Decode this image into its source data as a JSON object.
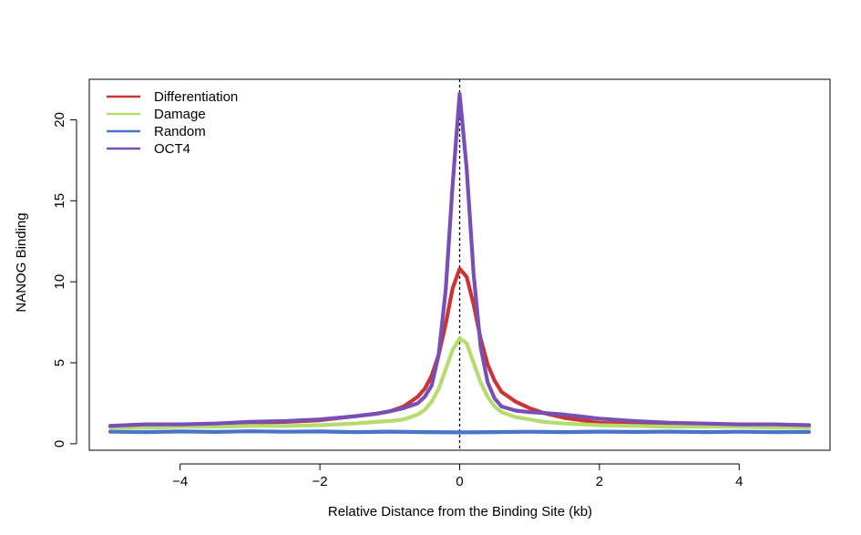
{
  "chart_data": {
    "type": "line",
    "title": "",
    "xlabel": "Relative Distance from the Binding Site (kb)",
    "ylabel": "NANOG Binding",
    "xlim": [
      -5.3,
      5.3
    ],
    "ylim": [
      -0.4,
      22.5
    ],
    "xticks": [
      -4,
      -2,
      0,
      2,
      4
    ],
    "xtick_labels": [
      "−4",
      "−2",
      "0",
      "2",
      "4"
    ],
    "yticks": [
      0,
      5,
      10,
      15,
      20
    ],
    "ytick_labels": [
      "0",
      "5",
      "10",
      "15",
      "20"
    ],
    "grid": false,
    "legend_position": "top-left",
    "reference_line": {
      "x": 0,
      "style": "dashed",
      "color": "#000000"
    },
    "series": [
      {
        "name": "Differentiation",
        "color": "#cc3333",
        "x": [
          -5,
          -4.5,
          -4,
          -3.5,
          -3,
          -2.5,
          -2,
          -1.5,
          -1.2,
          -1,
          -0.8,
          -0.6,
          -0.5,
          -0.4,
          -0.3,
          -0.2,
          -0.1,
          0,
          0.1,
          0.2,
          0.3,
          0.4,
          0.5,
          0.6,
          0.8,
          1,
          1.2,
          1.5,
          2,
          2.5,
          3,
          3.5,
          4,
          4.5,
          5
        ],
        "y": [
          1.1,
          1.1,
          1.2,
          1.2,
          1.3,
          1.35,
          1.45,
          1.7,
          1.85,
          2.0,
          2.3,
          2.9,
          3.4,
          4.2,
          5.5,
          7.4,
          9.6,
          10.8,
          10.3,
          8.6,
          6.5,
          4.9,
          3.9,
          3.2,
          2.6,
          2.2,
          1.9,
          1.6,
          1.3,
          1.2,
          1.15,
          1.15,
          1.1,
          1.1,
          1.05
        ]
      },
      {
        "name": "Damage",
        "color": "#b5dc6e",
        "x": [
          -5,
          -4.5,
          -4,
          -3.5,
          -3,
          -2.5,
          -2,
          -1.5,
          -1.2,
          -1,
          -0.8,
          -0.6,
          -0.5,
          -0.4,
          -0.3,
          -0.2,
          -0.1,
          0,
          0.1,
          0.2,
          0.3,
          0.4,
          0.5,
          0.6,
          0.8,
          1,
          1.2,
          1.5,
          2,
          2.5,
          3,
          3.5,
          4,
          4.5,
          5
        ],
        "y": [
          1.0,
          1.0,
          1.05,
          1.05,
          1.1,
          1.1,
          1.15,
          1.25,
          1.35,
          1.4,
          1.5,
          1.8,
          2.1,
          2.6,
          3.4,
          4.6,
          5.8,
          6.5,
          6.2,
          5.0,
          3.8,
          2.9,
          2.3,
          1.95,
          1.65,
          1.5,
          1.35,
          1.25,
          1.15,
          1.1,
          1.05,
          1.05,
          1.05,
          1.0,
          1.0
        ]
      },
      {
        "name": "Random",
        "color": "#4a74cc",
        "x": [
          -5,
          -4.5,
          -4,
          -3.5,
          -3,
          -2.5,
          -2,
          -1.5,
          -1,
          -0.5,
          0,
          0.5,
          1,
          1.5,
          2,
          2.5,
          3,
          3.5,
          4,
          4.5,
          5
        ],
        "y": [
          0.75,
          0.72,
          0.76,
          0.73,
          0.77,
          0.74,
          0.76,
          0.72,
          0.75,
          0.72,
          0.7,
          0.72,
          0.74,
          0.72,
          0.75,
          0.73,
          0.75,
          0.72,
          0.74,
          0.72,
          0.73
        ]
      },
      {
        "name": "OCT4",
        "color": "#7a4fb5",
        "x": [
          -5,
          -4.5,
          -4,
          -3.5,
          -3,
          -2.5,
          -2,
          -1.5,
          -1.2,
          -1,
          -0.8,
          -0.6,
          -0.5,
          -0.4,
          -0.3,
          -0.2,
          -0.1,
          0,
          0.1,
          0.2,
          0.3,
          0.4,
          0.5,
          0.6,
          0.8,
          1,
          1.2,
          1.5,
          2,
          2.5,
          3,
          3.5,
          4,
          4.5,
          5
        ],
        "y": [
          1.1,
          1.2,
          1.2,
          1.25,
          1.35,
          1.4,
          1.5,
          1.7,
          1.85,
          2.0,
          2.2,
          2.5,
          2.9,
          3.6,
          5.5,
          9.5,
          16.0,
          21.6,
          17.0,
          10.5,
          6.0,
          3.8,
          2.8,
          2.3,
          2.05,
          1.95,
          1.9,
          1.8,
          1.55,
          1.4,
          1.3,
          1.25,
          1.2,
          1.2,
          1.15
        ]
      }
    ]
  }
}
